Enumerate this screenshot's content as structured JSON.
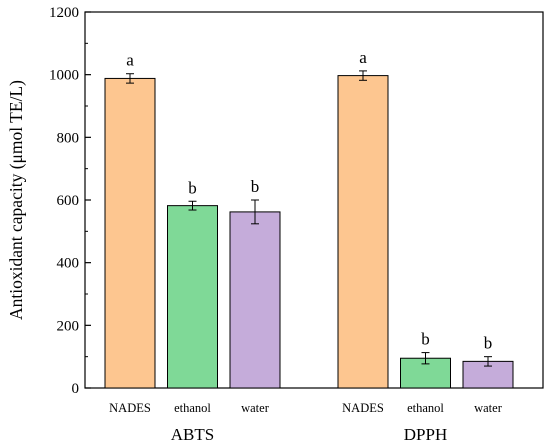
{
  "chart_data": {
    "type": "bar",
    "title": "",
    "xlabel": "",
    "ylabel": "Antioxidant capacity (μmol TE/L)",
    "ylim": [
      0,
      1200
    ],
    "yticks": [
      0,
      200,
      400,
      600,
      800,
      1000,
      1200
    ],
    "groups": [
      {
        "name": "ABTS",
        "bars": [
          {
            "category": "NADES",
            "value": 988,
            "error": 15,
            "sig": "a",
            "color": "#FDC690"
          },
          {
            "category": "ethanol",
            "value": 582,
            "error": 14,
            "sig": "b",
            "color": "#7FD997"
          },
          {
            "category": "water",
            "value": 562,
            "error": 38,
            "sig": "b",
            "color": "#C5ACDA"
          }
        ]
      },
      {
        "name": "DPPH",
        "bars": [
          {
            "category": "NADES",
            "value": 997,
            "error": 15,
            "sig": "a",
            "color": "#FDC690"
          },
          {
            "category": "ethanol",
            "value": 95,
            "error": 18,
            "sig": "b",
            "color": "#7FD997"
          },
          {
            "category": "water",
            "value": 85,
            "error": 15,
            "sig": "b",
            "color": "#C5ACDA"
          }
        ]
      }
    ],
    "grid": false,
    "legend": "none"
  }
}
